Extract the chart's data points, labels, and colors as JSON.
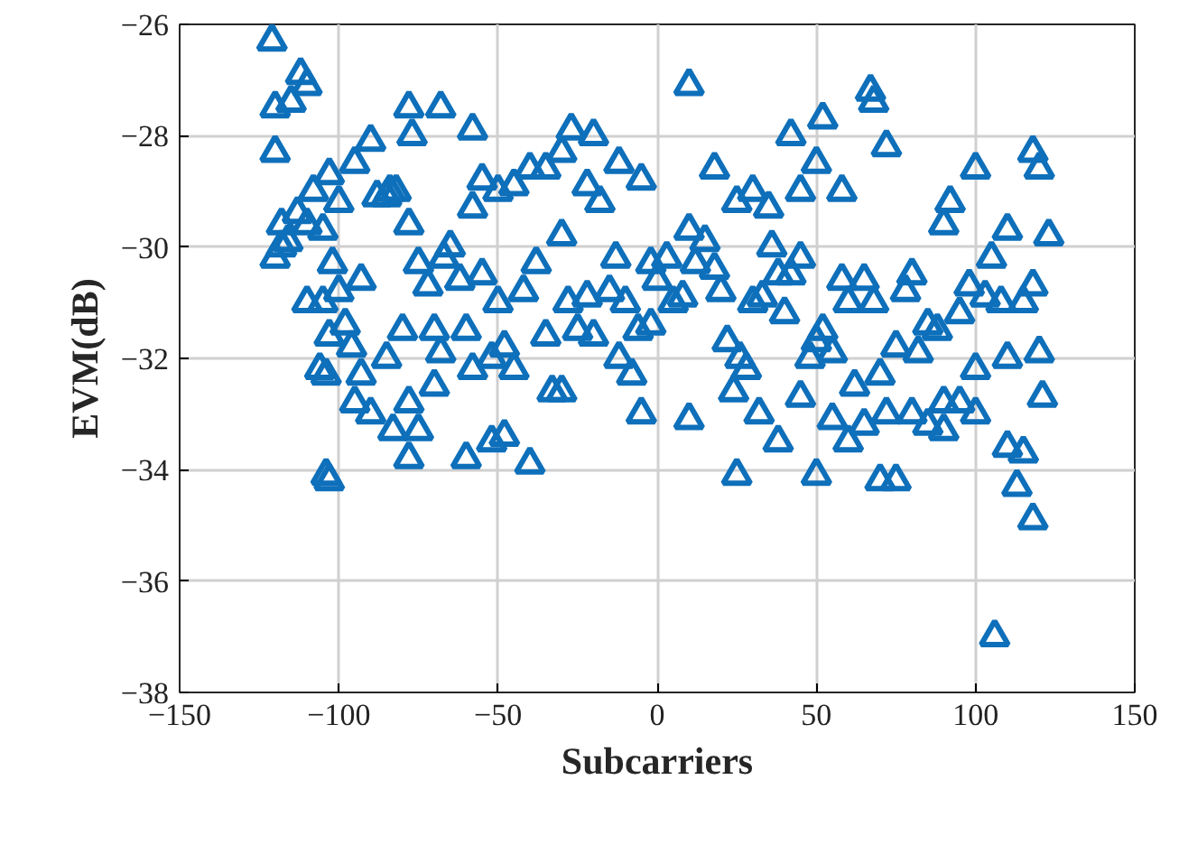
{
  "chart_data": {
    "type": "scatter",
    "xlabel": "Subcarriers",
    "ylabel": "EVM(dB)",
    "xlim": [
      -150,
      150
    ],
    "xticks": [
      -150,
      -100,
      -50,
      0,
      50,
      100,
      150
    ],
    "ylim": [
      -38,
      -26
    ],
    "yticks": [
      -38,
      -36,
      -34,
      -32,
      -30,
      -28,
      -26
    ],
    "grid": true,
    "marker": "triangle",
    "series": [
      {
        "color": "#0e6fba",
        "x": [
          -121,
          -120,
          -112,
          -110,
          -115,
          -120,
          -108,
          -118,
          -116,
          -113,
          -110,
          -105,
          -103,
          -100,
          -95,
          -88,
          -85,
          -82,
          -78,
          -90,
          -78,
          -77,
          -68,
          -58,
          -55,
          -58,
          -50,
          -45,
          -40,
          -35,
          -30,
          -27,
          -20,
          -22,
          -18,
          -12,
          -5,
          10,
          18,
          25,
          30,
          35,
          42,
          45,
          50,
          52,
          58,
          67,
          68,
          72,
          100,
          118,
          120,
          110,
          90,
          92,
          -120,
          -118,
          -102,
          -100,
          -105,
          -98,
          -93,
          -96,
          -93,
          -103,
          -106,
          -110,
          -104,
          -90,
          -95,
          -85,
          -83,
          -80,
          -78,
          -75,
          -70,
          -75,
          -72,
          -70,
          -68,
          -67,
          -65,
          -62,
          -60,
          -58,
          -55,
          -50,
          -48,
          -52,
          -48,
          -52,
          -45,
          -42,
          -38,
          -35,
          -33,
          -30,
          -28,
          -25,
          -22,
          -20,
          -15,
          -13,
          -10,
          -12,
          -8,
          -6,
          -2,
          0,
          3,
          5,
          8,
          10,
          12,
          15,
          18,
          20,
          22,
          24,
          26,
          28,
          30,
          33,
          36,
          38,
          40,
          42,
          45,
          48,
          50,
          52,
          55,
          58,
          60,
          62,
          65,
          68,
          70,
          72,
          75,
          78,
          80,
          82,
          85,
          88,
          90,
          95,
          98,
          100,
          103,
          105,
          108,
          110,
          115,
          118,
          120,
          123,
          -104,
          -103,
          -60,
          -78,
          -40,
          -30,
          -5,
          10,
          -2,
          25,
          32,
          38,
          45,
          50,
          55,
          60,
          65,
          70,
          75,
          80,
          85,
          95,
          90,
          100,
          110,
          115,
          113,
          118,
          106,
          121,
          -84
        ],
        "values": [
          -26.3,
          -27.5,
          -26.9,
          -27.1,
          -27.4,
          -28.3,
          -29.0,
          -29.6,
          -29.9,
          -29.4,
          -29.6,
          -29.7,
          -28.7,
          -29.2,
          -28.5,
          -29.1,
          -29.1,
          -29.0,
          -29.6,
          -28.1,
          -27.5,
          -28.0,
          -27.5,
          -27.9,
          -28.8,
          -29.3,
          -29.0,
          -28.9,
          -28.6,
          -28.6,
          -28.3,
          -27.9,
          -28.0,
          -28.9,
          -29.2,
          -28.5,
          -28.8,
          -27.1,
          -28.6,
          -29.2,
          -29.0,
          -29.3,
          -28.0,
          -29.0,
          -28.5,
          -27.7,
          -29.0,
          -27.2,
          -27.4,
          -28.2,
          -28.6,
          -28.3,
          -28.6,
          -29.7,
          -29.6,
          -29.2,
          -30.2,
          -30.0,
          -30.3,
          -30.8,
          -31.0,
          -31.4,
          -30.6,
          -31.8,
          -32.3,
          -31.6,
          -32.2,
          -31.0,
          -32.3,
          -33.0,
          -32.8,
          -32.0,
          -33.3,
          -31.5,
          -32.8,
          -33.3,
          -32.5,
          -30.3,
          -30.7,
          -31.5,
          -31.9,
          -30.2,
          -30.0,
          -30.6,
          -31.5,
          -32.2,
          -30.5,
          -31.0,
          -31.8,
          -32.0,
          -33.4,
          -33.5,
          -32.2,
          -30.8,
          -30.3,
          -31.6,
          -32.6,
          -29.8,
          -31.0,
          -31.5,
          -30.9,
          -31.6,
          -30.8,
          -30.2,
          -31.0,
          -32.0,
          -32.3,
          -31.5,
          -30.3,
          -30.6,
          -30.2,
          -31.0,
          -30.9,
          -29.7,
          -30.3,
          -29.9,
          -30.4,
          -30.8,
          -31.7,
          -32.6,
          -32.0,
          -32.2,
          -31.0,
          -30.9,
          -30.0,
          -30.5,
          -31.2,
          -30.5,
          -30.2,
          -32.0,
          -31.7,
          -31.5,
          -31.9,
          -30.6,
          -31.0,
          -32.5,
          -30.6,
          -31.0,
          -32.3,
          -33.0,
          -31.8,
          -30.8,
          -30.5,
          -31.9,
          -31.4,
          -31.5,
          -32.8,
          -31.2,
          -30.7,
          -32.2,
          -30.9,
          -30.2,
          -31.0,
          -32.0,
          -31.0,
          -30.7,
          -31.9,
          -29.8,
          -34.1,
          -34.2,
          -33.8,
          -33.8,
          -33.9,
          -32.6,
          -33.0,
          -33.1,
          -31.4,
          -34.1,
          -33.0,
          -33.5,
          -32.7,
          -34.1,
          -33.1,
          -33.5,
          -33.2,
          -34.2,
          -34.2,
          -33.0,
          -33.2,
          -32.8,
          -33.3,
          -33.0,
          -33.6,
          -33.7,
          -34.3,
          -34.9,
          -37.0,
          -32.7,
          -29.0
        ]
      }
    ]
  }
}
